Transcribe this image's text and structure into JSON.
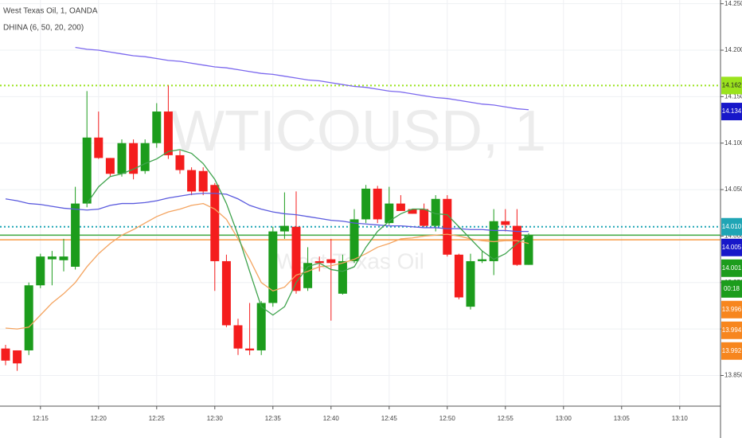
{
  "chart_data": {
    "type": "candlestick",
    "title": "West Texas Oil, 1, OANDA",
    "indicator": "DHINA (6, 50, 20, 200)",
    "watermark": "WTICOUSD, 1",
    "watermark_subtitle": "West Texas Oil",
    "up_color": "#1c9c1c",
    "down_color": "#f41d1d",
    "grid": true,
    "categories": [
      null,
      null,
      null,
      "12:15",
      null,
      null,
      null,
      null,
      "12:20",
      null,
      null,
      null,
      null,
      "12:25",
      null,
      null,
      null,
      null,
      "12:30",
      null,
      null,
      null,
      null,
      "12:35",
      null,
      null,
      null,
      null,
      "12:40",
      null,
      null,
      null,
      null,
      "12:45",
      null,
      null,
      null,
      null,
      "12:50",
      null,
      null,
      null,
      null,
      "12:55",
      null,
      null,
      null,
      null,
      "13:00",
      null,
      null,
      null,
      null,
      "13:05",
      null,
      null,
      null,
      null,
      "13:10"
    ],
    "open": [
      13.879,
      13.877,
      13.877,
      13.947,
      13.975,
      13.974,
      13.967,
      14.035,
      14.106,
      14.084,
      14.067,
      14.1,
      14.07,
      14.1,
      14.134,
      14.087,
      14.071,
      14.07,
      14.055,
      13.973,
      13.904,
      13.879,
      13.877,
      13.928,
      14.005,
      14.01,
      13.944,
      13.973,
      13.975,
      13.938,
      13.973,
      14.018,
      14.051,
      14.014,
      14.035,
      14.029,
      14.029,
      14.011,
      14.04,
      13.98,
      13.924,
      13.973,
      13.973,
      14.016,
      14.011,
      13.969,
      null,
      null,
      null,
      null,
      null,
      null,
      null,
      null,
      null,
      null,
      null,
      null,
      null
    ],
    "high": [
      13.883,
      13.877,
      13.95,
      13.981,
      13.984,
      13.997,
      14.053,
      14.156,
      14.134,
      14.084,
      14.104,
      14.104,
      14.104,
      14.143,
      14.162,
      14.092,
      14.074,
      14.074,
      14.057,
      13.98,
      13.911,
      13.928,
      13.93,
      14.01,
      14.047,
      14.048,
      13.988,
      13.978,
      13.997,
      13.98,
      14.029,
      14.055,
      14.054,
      14.053,
      14.044,
      14.029,
      14.035,
      14.044,
      14.044,
      13.981,
      13.981,
      13.984,
      14.029,
      14.029,
      14.029,
      14.003,
      null,
      null,
      null,
      null,
      null,
      null,
      null,
      null,
      null,
      null,
      null,
      null,
      null
    ],
    "low": [
      13.861,
      13.855,
      13.872,
      13.944,
      13.947,
      13.962,
      13.964,
      14.031,
      14.083,
      14.064,
      14.064,
      14.061,
      14.067,
      14.095,
      14.083,
      14.067,
      14.044,
      14.044,
      13.941,
      13.902,
      13.872,
      13.872,
      13.872,
      13.924,
      13.997,
      13.938,
      13.941,
      13.962,
      13.909,
      13.937,
      13.971,
      14.014,
      14.014,
      14.012,
      14.027,
      14.024,
      14.01,
      14.005,
      13.978,
      13.932,
      13.921,
      13.971,
      13.958,
      14.005,
      13.968,
      13.969,
      null,
      null,
      null,
      null,
      null,
      null,
      null,
      null,
      null,
      null,
      null,
      null,
      null
    ],
    "close": [
      13.866,
      13.863,
      13.947,
      13.978,
      13.978,
      13.978,
      14.035,
      14.106,
      14.084,
      14.067,
      14.1,
      14.067,
      14.1,
      14.134,
      14.087,
      14.071,
      14.048,
      14.048,
      13.973,
      13.904,
      13.879,
      13.877,
      13.928,
      14.005,
      14.011,
      13.941,
      13.971,
      13.971,
      13.971,
      13.973,
      14.018,
      14.051,
      14.018,
      14.035,
      14.027,
      14.024,
      14.011,
      14.04,
      13.98,
      13.934,
      13.973,
      13.975,
      14.016,
      14.012,
      13.969,
      14.001,
      null,
      null,
      null,
      null,
      null,
      null,
      null,
      null,
      null,
      null,
      null,
      null,
      null
    ],
    "series": [
      {
        "color": "#7b68ee",
        "values": [
          null,
          null,
          null,
          null,
          null,
          null,
          14.203,
          14.201,
          14.2,
          14.198,
          14.196,
          14.194,
          14.193,
          14.191,
          14.189,
          14.188,
          14.186,
          14.184,
          14.182,
          14.181,
          14.179,
          14.177,
          14.175,
          14.174,
          14.172,
          14.17,
          14.168,
          14.167,
          14.165,
          14.163,
          14.161,
          14.16,
          14.158,
          14.156,
          14.155,
          14.153,
          14.151,
          14.149,
          14.148,
          14.146,
          14.144,
          14.142,
          14.141,
          14.139,
          14.137,
          14.136,
          null,
          null,
          null,
          null,
          null,
          null,
          null,
          null,
          null,
          null,
          null,
          null,
          null
        ]
      },
      {
        "color": "#5b5bde",
        "values": [
          14.04,
          14.038,
          14.035,
          14.034,
          14.032,
          14.03,
          14.029,
          14.028,
          14.029,
          14.033,
          14.035,
          14.035,
          14.036,
          14.038,
          14.041,
          14.043,
          14.045,
          14.046,
          14.046,
          14.045,
          14.04,
          14.033,
          14.029,
          14.026,
          14.024,
          14.023,
          14.021,
          14.019,
          14.017,
          14.016,
          14.014,
          14.013,
          14.012,
          14.011,
          14.011,
          14.01,
          14.009,
          14.009,
          14.008,
          14.008,
          14.007,
          14.007,
          14.006,
          14.006,
          14.005,
          14.005,
          null,
          null,
          null,
          null,
          null,
          null,
          null,
          null,
          null,
          null,
          null,
          null,
          null
        ]
      },
      {
        "color": "#f4a460",
        "values": [
          13.901,
          13.9,
          13.902,
          13.915,
          13.928,
          13.938,
          13.95,
          13.967,
          13.981,
          13.992,
          14.001,
          14.007,
          14.014,
          14.021,
          14.026,
          14.029,
          14.033,
          14.035,
          14.029,
          14.018,
          13.997,
          13.975,
          13.95,
          13.941,
          13.945,
          13.958,
          13.962,
          13.967,
          13.968,
          13.971,
          13.975,
          13.981,
          13.988,
          13.992,
          13.997,
          13.998,
          14.0,
          14.001,
          14.002,
          14.0,
          13.997,
          13.995,
          13.994,
          13.995,
          13.995,
          13.992,
          null,
          null,
          null,
          null,
          null,
          null,
          null,
          null,
          null,
          null,
          null,
          null,
          null
        ]
      },
      {
        "color": "#3fa34d",
        "values": [
          null,
          null,
          null,
          null,
          null,
          null,
          null,
          14.035,
          14.053,
          14.064,
          14.067,
          14.072,
          14.078,
          14.083,
          14.091,
          14.093,
          14.089,
          14.078,
          14.061,
          14.035,
          14.001,
          13.962,
          13.924,
          13.915,
          13.924,
          13.95,
          13.967,
          13.971,
          13.964,
          13.962,
          13.967,
          13.988,
          14.005,
          14.016,
          14.024,
          14.029,
          14.029,
          14.024,
          14.023,
          14.01,
          13.997,
          13.984,
          13.975,
          13.981,
          13.992,
          14.001,
          null,
          null,
          null,
          null,
          null,
          null,
          null,
          null,
          null,
          null,
          null,
          null,
          null
        ]
      }
    ],
    "ylim": [
      13.817,
      14.254
    ],
    "yticks": [
      {
        "value": 13.85,
        "label": "13.850"
      },
      {
        "value": 13.9,
        "label": "13.900"
      },
      {
        "value": 13.95,
        "label": "13.950"
      },
      {
        "value": 14.0,
        "label": "14.000"
      },
      {
        "value": 14.05,
        "label": "14.050"
      },
      {
        "value": 14.1,
        "label": "14.100"
      },
      {
        "value": 14.15,
        "label": "14.150"
      },
      {
        "value": 14.2,
        "label": "14.200"
      },
      {
        "value": 14.25,
        "label": "14.250"
      }
    ],
    "badges": [
      {
        "value": 14.162,
        "color": "#9be31d",
        "text_color": "#222",
        "line": "dotted"
      },
      {
        "value": 14.134,
        "color": "#1717c9",
        "text_color": "#fff"
      },
      {
        "value": 14.01,
        "label": "14.010",
        "color": "#1fa5b5",
        "text_color": "#fff",
        "line": "dotted"
      },
      {
        "value": 14.005,
        "color": "#1717c9",
        "text_color": "#fff"
      },
      {
        "value": 14.001,
        "color": "#1c9c1c",
        "text_color": "#fff",
        "line": "solid"
      },
      {
        "label": "00:18",
        "color": "#1c9c1c",
        "text_color": "#fff"
      },
      {
        "value": 13.996,
        "color": "#f7861e",
        "text_color": "#fff",
        "line": "solid"
      },
      {
        "value": 13.994,
        "color": "#f7861e",
        "text_color": "#fff"
      },
      {
        "value": 13.992,
        "color": "#f7861e",
        "text_color": "#fff"
      }
    ]
  }
}
